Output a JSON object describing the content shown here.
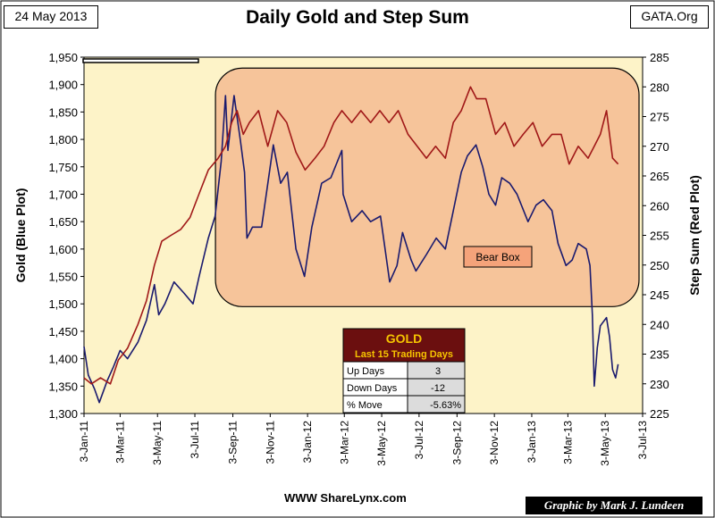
{
  "header": {
    "date": "24 May 2013",
    "title": "Daily Gold and Step Sum",
    "source": "GATA.Org"
  },
  "footer": {
    "left": "WWW ShareLynx.com",
    "right": "Graphic by Mark J. Lundeen"
  },
  "annotation": {
    "bear_box": "Bear Box"
  },
  "table": {
    "title": "GOLD",
    "subtitle": "Last 15 Trading Days",
    "rows": [
      {
        "label": "Up Days",
        "value": "3"
      },
      {
        "label": "Down Days",
        "value": "-12"
      },
      {
        "label": "% Move",
        "value": "-5.63%"
      }
    ]
  },
  "colors": {
    "plot_bg": "#fdf3c8",
    "gold": "#1a1a6e",
    "step_sum": "#a01818",
    "bear_box": "#f6c49a",
    "table_header": "#6b0f0f"
  },
  "chart_data": {
    "type": "line",
    "xlabel": "",
    "ylabel_left": "Gold (Blue Plot)",
    "ylabel_right": "Step Sum (Red Plot)",
    "x_range": [
      "2011-01-03",
      "2013-07-03"
    ],
    "x_ticks": [
      "3-Jan-11",
      "3-Mar-11",
      "3-May-11",
      "3-Jul-11",
      "3-Sep-11",
      "3-Nov-11",
      "3-Jan-12",
      "3-Mar-12",
      "3-May-12",
      "3-Jul-12",
      "3-Sep-12",
      "3-Nov-12",
      "3-Jan-13",
      "3-Mar-13",
      "3-May-13",
      "3-Jul-13"
    ],
    "ylim_left": [
      1300,
      1950
    ],
    "yticks_left": [
      "1,300",
      "1,350",
      "1,400",
      "1,450",
      "1,500",
      "1,550",
      "1,600",
      "1,650",
      "1,700",
      "1,750",
      "1,800",
      "1,850",
      "1,900",
      "1,950"
    ],
    "ylim_right": [
      225,
      285
    ],
    "yticks_right": [
      "225",
      "230",
      "235",
      "240",
      "245",
      "250",
      "255",
      "260",
      "265",
      "270",
      "275",
      "280",
      "285"
    ],
    "series": [
      {
        "name": "Gold",
        "axis": "left",
        "points": [
          [
            "2011-01-03",
            1422
          ],
          [
            "2011-01-10",
            1370
          ],
          [
            "2011-01-20",
            1345
          ],
          [
            "2011-01-28",
            1320
          ],
          [
            "2011-02-10",
            1360
          ],
          [
            "2011-02-20",
            1385
          ],
          [
            "2011-03-03",
            1415
          ],
          [
            "2011-03-15",
            1400
          ],
          [
            "2011-04-01",
            1430
          ],
          [
            "2011-04-15",
            1470
          ],
          [
            "2011-04-28",
            1535
          ],
          [
            "2011-05-05",
            1480
          ],
          [
            "2011-05-15",
            1500
          ],
          [
            "2011-05-30",
            1540
          ],
          [
            "2011-06-15",
            1520
          ],
          [
            "2011-06-30",
            1500
          ],
          [
            "2011-07-10",
            1550
          ],
          [
            "2011-07-25",
            1620
          ],
          [
            "2011-08-05",
            1660
          ],
          [
            "2011-08-15",
            1760
          ],
          [
            "2011-08-22",
            1880
          ],
          [
            "2011-08-26",
            1780
          ],
          [
            "2011-09-05",
            1880
          ],
          [
            "2011-09-15",
            1800
          ],
          [
            "2011-09-22",
            1740
          ],
          [
            "2011-09-26",
            1620
          ],
          [
            "2011-10-05",
            1640
          ],
          [
            "2011-10-20",
            1640
          ],
          [
            "2011-11-08",
            1790
          ],
          [
            "2011-11-20",
            1720
          ],
          [
            "2011-12-01",
            1740
          ],
          [
            "2011-12-15",
            1600
          ],
          [
            "2011-12-29",
            1550
          ],
          [
            "2012-01-10",
            1640
          ],
          [
            "2012-01-26",
            1720
          ],
          [
            "2012-02-10",
            1730
          ],
          [
            "2012-02-28",
            1780
          ],
          [
            "2012-03-01",
            1700
          ],
          [
            "2012-03-15",
            1650
          ],
          [
            "2012-04-01",
            1670
          ],
          [
            "2012-04-15",
            1650
          ],
          [
            "2012-05-01",
            1660
          ],
          [
            "2012-05-16",
            1540
          ],
          [
            "2012-05-28",
            1570
          ],
          [
            "2012-06-06",
            1630
          ],
          [
            "2012-06-20",
            1580
          ],
          [
            "2012-06-28",
            1560
          ],
          [
            "2012-07-15",
            1590
          ],
          [
            "2012-07-31",
            1620
          ],
          [
            "2012-08-15",
            1600
          ],
          [
            "2012-08-28",
            1670
          ],
          [
            "2012-09-10",
            1740
          ],
          [
            "2012-09-20",
            1770
          ],
          [
            "2012-10-04",
            1790
          ],
          [
            "2012-10-15",
            1750
          ],
          [
            "2012-10-25",
            1700
          ],
          [
            "2012-11-05",
            1680
          ],
          [
            "2012-11-15",
            1730
          ],
          [
            "2012-11-28",
            1720
          ],
          [
            "2012-12-10",
            1700
          ],
          [
            "2012-12-28",
            1650
          ],
          [
            "2013-01-10",
            1680
          ],
          [
            "2013-01-22",
            1690
          ],
          [
            "2013-02-05",
            1670
          ],
          [
            "2013-02-15",
            1610
          ],
          [
            "2013-02-28",
            1570
          ],
          [
            "2013-03-10",
            1580
          ],
          [
            "2013-03-20",
            1610
          ],
          [
            "2013-04-02",
            1600
          ],
          [
            "2013-04-08",
            1570
          ],
          [
            "2013-04-12",
            1480
          ],
          [
            "2013-04-15",
            1350
          ],
          [
            "2013-04-20",
            1420
          ],
          [
            "2013-04-25",
            1460
          ],
          [
            "2013-05-05",
            1475
          ],
          [
            "2013-05-10",
            1440
          ],
          [
            "2013-05-15",
            1380
          ],
          [
            "2013-05-20",
            1365
          ],
          [
            "2013-05-24",
            1390
          ]
        ]
      },
      {
        "name": "Step Sum",
        "axis": "right",
        "points": [
          [
            "2011-01-03",
            231
          ],
          [
            "2011-01-15",
            230
          ],
          [
            "2011-01-30",
            231
          ],
          [
            "2011-02-15",
            230
          ],
          [
            "2011-02-28",
            234
          ],
          [
            "2011-03-15",
            236
          ],
          [
            "2011-04-01",
            240
          ],
          [
            "2011-04-15",
            244
          ],
          [
            "2011-04-28",
            250
          ],
          [
            "2011-05-10",
            254
          ],
          [
            "2011-05-25",
            255
          ],
          [
            "2011-06-10",
            256
          ],
          [
            "2011-06-25",
            258
          ],
          [
            "2011-07-10",
            262
          ],
          [
            "2011-07-25",
            266
          ],
          [
            "2011-08-10",
            268
          ],
          [
            "2011-08-22",
            270
          ],
          [
            "2011-09-01",
            274
          ],
          [
            "2011-09-10",
            276
          ],
          [
            "2011-09-20",
            272
          ],
          [
            "2011-09-30",
            274
          ],
          [
            "2011-10-15",
            276
          ],
          [
            "2011-10-30",
            270
          ],
          [
            "2011-11-15",
            276
          ],
          [
            "2011-11-30",
            274
          ],
          [
            "2011-12-15",
            269
          ],
          [
            "2011-12-30",
            266
          ],
          [
            "2012-01-15",
            268
          ],
          [
            "2012-01-30",
            270
          ],
          [
            "2012-02-15",
            274
          ],
          [
            "2012-02-28",
            276
          ],
          [
            "2012-03-15",
            274
          ],
          [
            "2012-03-30",
            276
          ],
          [
            "2012-04-15",
            274
          ],
          [
            "2012-04-30",
            276
          ],
          [
            "2012-05-15",
            274
          ],
          [
            "2012-05-30",
            276
          ],
          [
            "2012-06-15",
            272
          ],
          [
            "2012-06-30",
            270
          ],
          [
            "2012-07-15",
            268
          ],
          [
            "2012-07-30",
            270
          ],
          [
            "2012-08-15",
            268
          ],
          [
            "2012-08-28",
            274
          ],
          [
            "2012-09-10",
            276
          ],
          [
            "2012-09-25",
            280
          ],
          [
            "2012-10-05",
            278
          ],
          [
            "2012-10-20",
            278
          ],
          [
            "2012-11-05",
            272
          ],
          [
            "2012-11-20",
            274
          ],
          [
            "2012-12-05",
            270
          ],
          [
            "2012-12-20",
            272
          ],
          [
            "2013-01-05",
            274
          ],
          [
            "2013-01-20",
            270
          ],
          [
            "2013-02-05",
            272
          ],
          [
            "2013-02-20",
            272
          ],
          [
            "2013-03-05",
            267
          ],
          [
            "2013-03-20",
            270
          ],
          [
            "2013-04-05",
            268
          ],
          [
            "2013-04-15",
            270
          ],
          [
            "2013-04-25",
            272
          ],
          [
            "2013-05-05",
            276
          ],
          [
            "2013-05-15",
            268
          ],
          [
            "2013-05-24",
            267
          ]
        ]
      }
    ],
    "bear_box_range": {
      "x": [
        "2011-08-10",
        "2013-07-03"
      ],
      "y_left": [
        1495,
        1930
      ]
    },
    "grid": false,
    "legend": "none"
  }
}
